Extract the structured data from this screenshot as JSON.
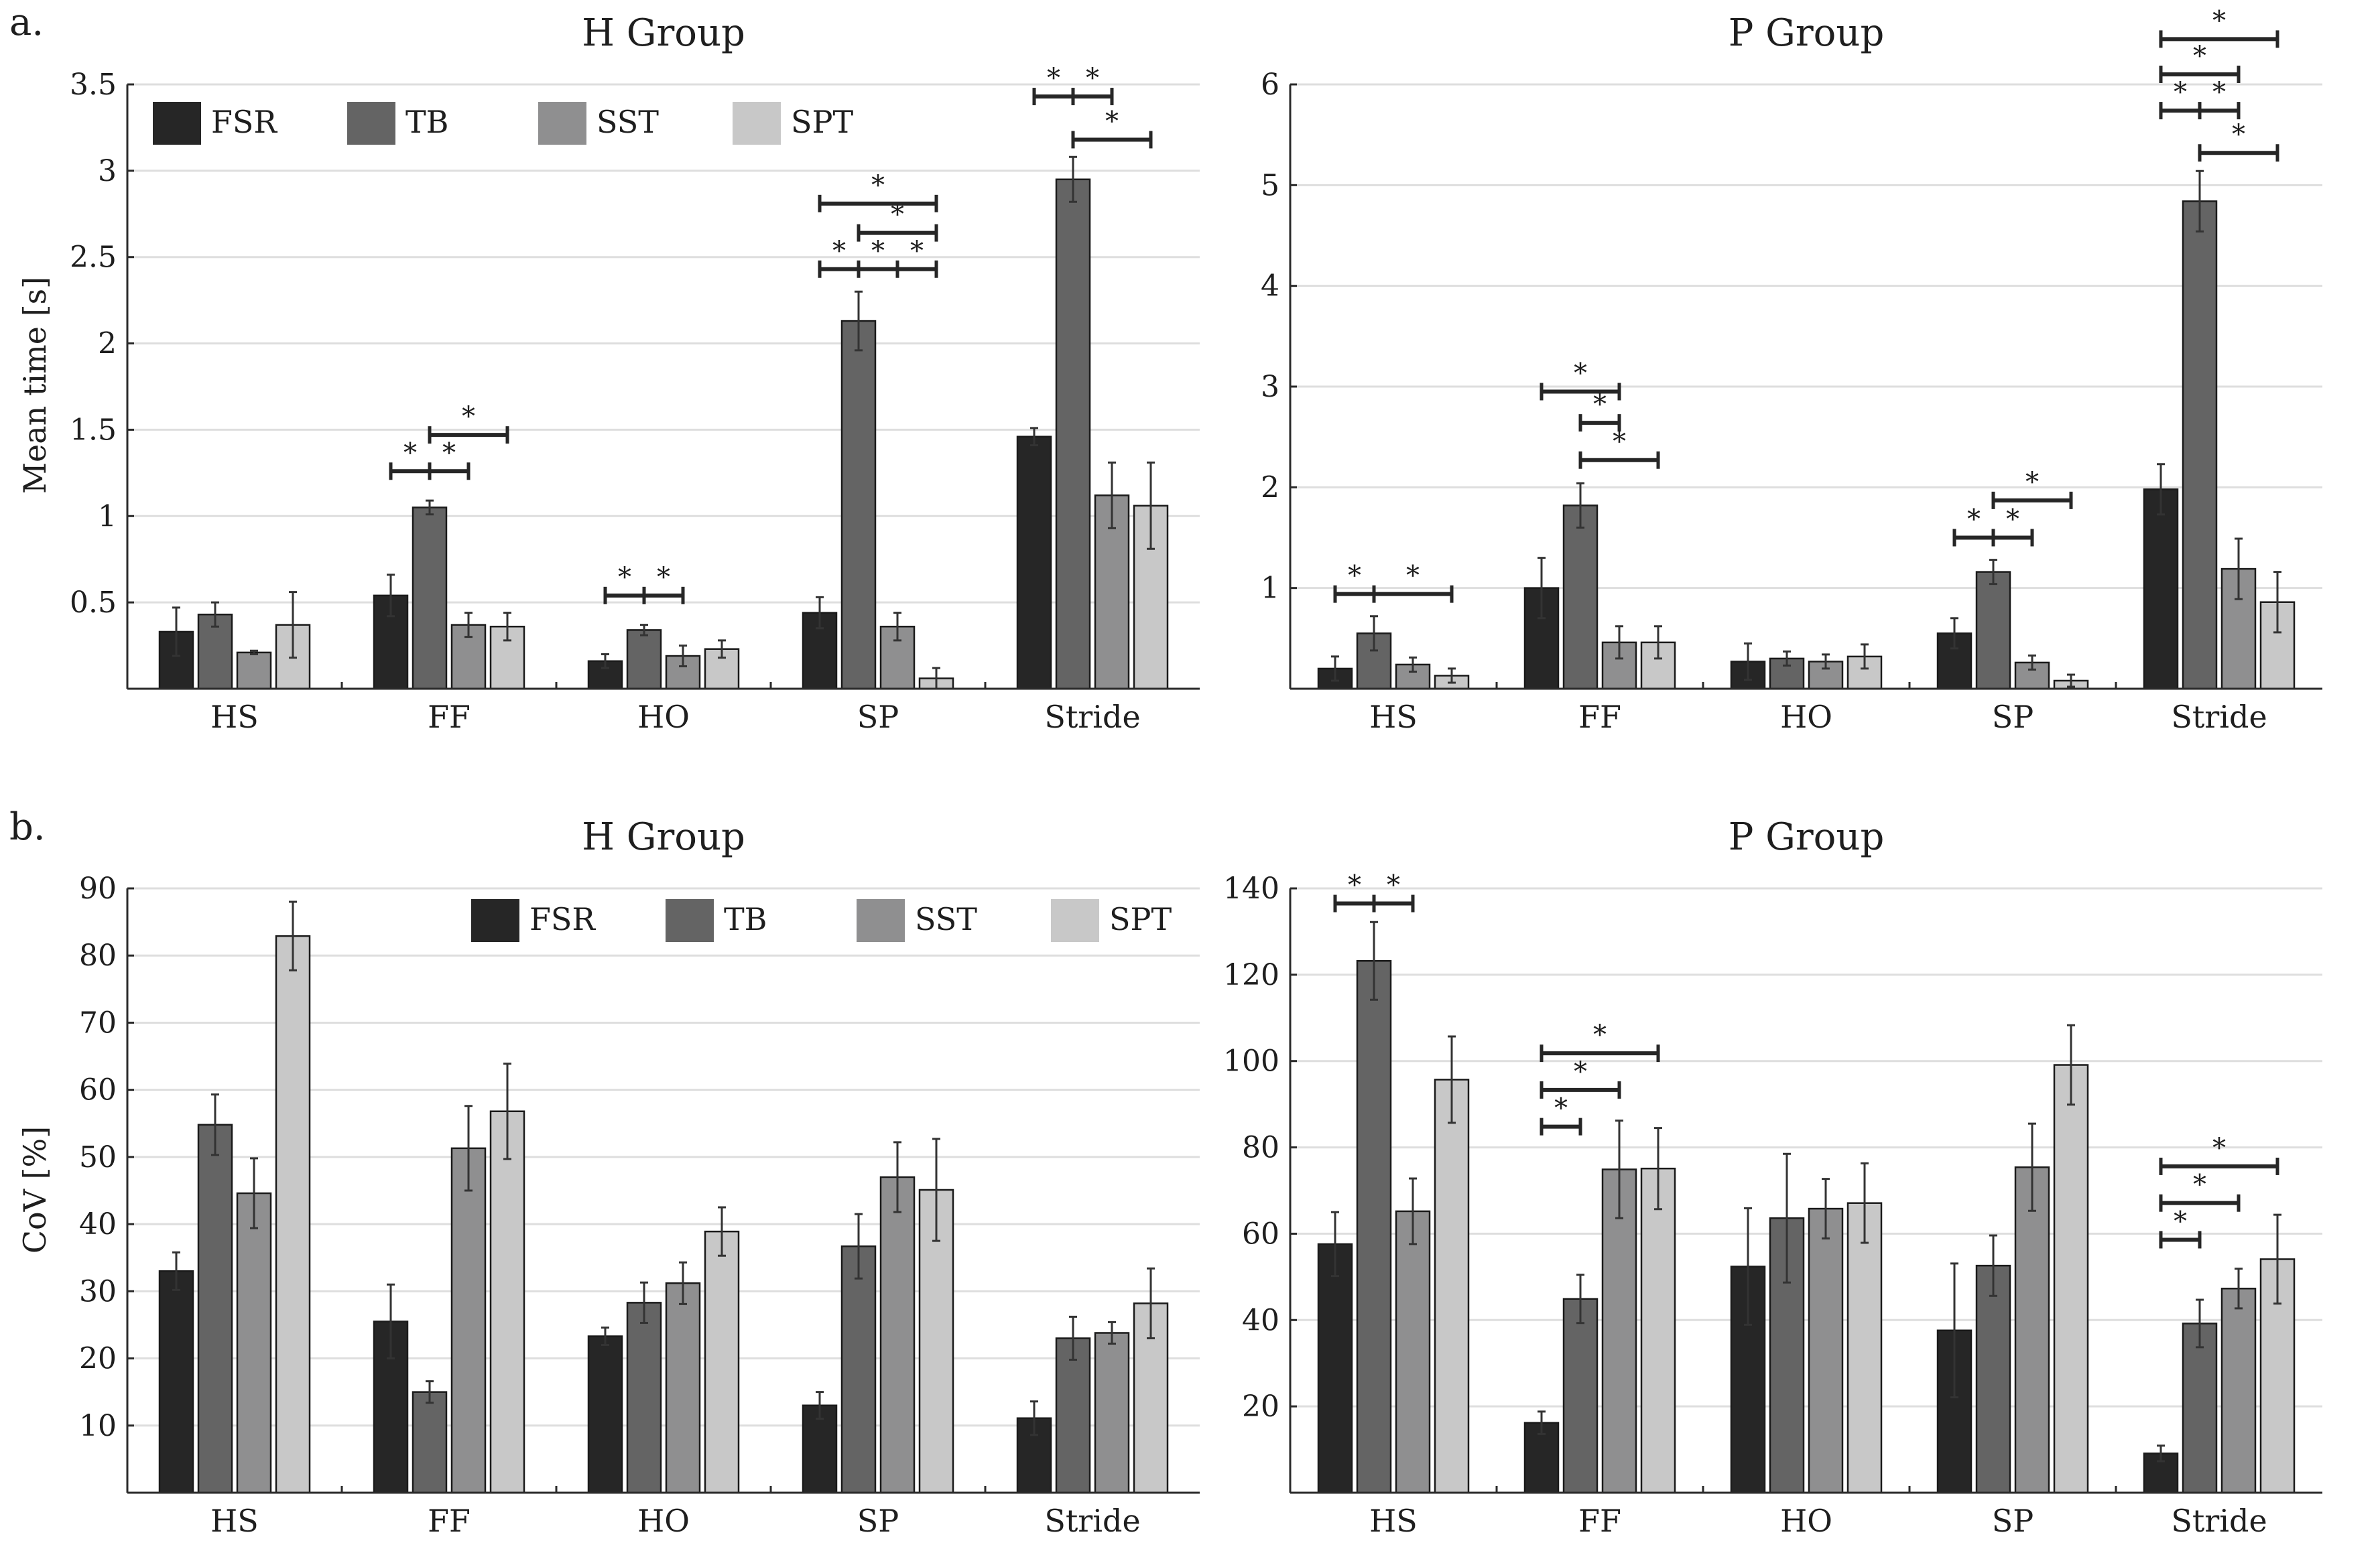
{
  "figure": {
    "section_labels": [
      "a.",
      "b."
    ],
    "ylabel_top": "Mean time [s]",
    "ylabel_bottom": "CoV [%]",
    "legend": [
      "FSR",
      "TB",
      "SST",
      "SPT"
    ],
    "colors": {
      "FSR": "#262626",
      "TB": "#646464",
      "SST": "#8f8f90",
      "SPT": "#c8c8c8",
      "grid": "#dedede",
      "axis": "#2a2a2a",
      "bracket": "#262626"
    },
    "significance_marker": "*"
  },
  "chart_data": [
    {
      "type": "bar",
      "title": "H Group",
      "xlabel": "",
      "ylabel": "Mean time [s]",
      "ylim": [
        0,
        3.5
      ],
      "yticks": [
        0.5,
        1,
        1.5,
        2,
        2.5,
        3,
        3.5
      ],
      "ytick_labels": [
        "0.5",
        "1",
        "1.5",
        "2",
        "2.5",
        "3",
        "3.5"
      ],
      "categories": [
        "HS",
        "FF",
        "HO",
        "SP",
        "Stride"
      ],
      "legend_position": "top",
      "series": [
        {
          "name": "FSR",
          "values": [
            0.33,
            0.54,
            0.16,
            0.44,
            1.46
          ],
          "errors": [
            0.14,
            0.12,
            0.04,
            0.09,
            0.05
          ]
        },
        {
          "name": "TB",
          "values": [
            0.43,
            1.05,
            0.34,
            2.13,
            2.95
          ],
          "errors": [
            0.07,
            0.04,
            0.03,
            0.17,
            0.13
          ]
        },
        {
          "name": "SST",
          "values": [
            0.21,
            0.37,
            0.19,
            0.36,
            1.12
          ],
          "errors": [
            0.01,
            0.07,
            0.06,
            0.08,
            0.19
          ]
        },
        {
          "name": "SPT",
          "values": [
            0.37,
            0.36,
            0.23,
            0.06,
            1.06
          ],
          "errors": [
            0.19,
            0.08,
            0.05,
            0.06,
            0.25
          ]
        }
      ],
      "significance": [
        {
          "category": 1,
          "from": 0,
          "to": 2,
          "ticks": [
            0,
            1,
            2
          ],
          "y": 1.26
        },
        {
          "category": 1,
          "from": 1,
          "to": 3,
          "ticks": [
            1,
            3
          ],
          "y": 1.47
        },
        {
          "category": 2,
          "from": 0,
          "to": 2,
          "ticks": [
            0,
            1,
            2
          ],
          "y": 0.54
        },
        {
          "category": 3,
          "from": 0,
          "to": 3,
          "ticks": [
            0,
            1,
            2,
            3
          ],
          "y": 2.43
        },
        {
          "category": 3,
          "from": 1,
          "to": 3,
          "ticks": [
            1,
            3
          ],
          "y": 2.64
        },
        {
          "category": 3,
          "from": 0,
          "to": 3,
          "ticks": [
            0,
            3
          ],
          "y": 2.81
        },
        {
          "category": 4,
          "from": 0,
          "to": 2,
          "ticks": [
            0,
            1,
            2
          ],
          "y": 3.43
        },
        {
          "category": 4,
          "from": 1,
          "to": 3,
          "ticks": [
            1,
            3
          ],
          "y": 3.18
        }
      ]
    },
    {
      "type": "bar",
      "title": "P Group",
      "xlabel": "",
      "ylabel": "",
      "ylim": [
        0,
        6
      ],
      "yticks": [
        1,
        2,
        3,
        4,
        5,
        6
      ],
      "ytick_labels": [
        "1",
        "2",
        "3",
        "4",
        "5",
        "6"
      ],
      "categories": [
        "HS",
        "FF",
        "HO",
        "SP",
        "Stride"
      ],
      "series": [
        {
          "name": "FSR",
          "values": [
            0.2,
            1.0,
            0.27,
            0.55,
            1.98
          ],
          "errors": [
            0.12,
            0.3,
            0.18,
            0.15,
            0.25
          ]
        },
        {
          "name": "TB",
          "values": [
            0.55,
            1.82,
            0.3,
            1.16,
            4.84
          ],
          "errors": [
            0.17,
            0.22,
            0.07,
            0.12,
            0.3
          ]
        },
        {
          "name": "SST",
          "values": [
            0.24,
            0.46,
            0.27,
            0.26,
            1.19
          ],
          "errors": [
            0.07,
            0.16,
            0.07,
            0.07,
            0.3
          ]
        },
        {
          "name": "SPT",
          "values": [
            0.13,
            0.46,
            0.32,
            0.08,
            0.86
          ],
          "errors": [
            0.07,
            0.16,
            0.12,
            0.06,
            0.3
          ]
        }
      ],
      "significance": [
        {
          "category": 0,
          "from": 0,
          "to": 3,
          "ticks": [
            0,
            1,
            3
          ],
          "y": 0.94
        },
        {
          "category": 1,
          "from": 0,
          "to": 2,
          "ticks": [
            0,
            2
          ],
          "y": 2.95
        },
        {
          "category": 1,
          "from": 1,
          "to": 2,
          "ticks": [
            1,
            2
          ],
          "y": 2.64
        },
        {
          "category": 1,
          "from": 1,
          "to": 3,
          "ticks": [
            1,
            3
          ],
          "y": 2.27
        },
        {
          "category": 3,
          "from": 0,
          "to": 2,
          "ticks": [
            0,
            1,
            2
          ],
          "y": 1.5
        },
        {
          "category": 3,
          "from": 1,
          "to": 3,
          "ticks": [
            1,
            3
          ],
          "y": 1.87
        },
        {
          "category": 4,
          "from": 0,
          "to": 3,
          "ticks": [
            0,
            3
          ],
          "y": 6.45
        },
        {
          "category": 4,
          "from": 0,
          "to": 2,
          "ticks": [
            0,
            2
          ],
          "y": 6.1
        },
        {
          "category": 4,
          "from": 0,
          "to": 2,
          "ticks": [
            0,
            1,
            2
          ],
          "y": 5.74
        },
        {
          "category": 4,
          "from": 1,
          "to": 3,
          "ticks": [
            1,
            3
          ],
          "y": 5.32
        }
      ]
    },
    {
      "type": "bar",
      "title": "H Group",
      "xlabel": "",
      "ylabel": "CoV [%]",
      "ylim": [
        0,
        90
      ],
      "yticks": [
        10,
        20,
        30,
        40,
        50,
        60,
        70,
        80,
        90
      ],
      "ytick_labels": [
        "10",
        "20",
        "30",
        "40",
        "50",
        "60",
        "70",
        "80",
        "90"
      ],
      "categories": [
        "HS",
        "FF",
        "HO",
        "SP",
        "Stride"
      ],
      "legend_position": "top-right",
      "series": [
        {
          "name": "FSR",
          "values": [
            33,
            25.5,
            23.3,
            13,
            11.1
          ],
          "errors": [
            2.8,
            5.5,
            1.3,
            2,
            2.5
          ]
        },
        {
          "name": "TB",
          "values": [
            54.8,
            15,
            28.3,
            36.7,
            23
          ],
          "errors": [
            4.5,
            1.6,
            3,
            4.8,
            3.2
          ]
        },
        {
          "name": "SST",
          "values": [
            44.6,
            51.3,
            31.2,
            47,
            23.8
          ],
          "errors": [
            5.2,
            6.3,
            3.1,
            5.2,
            1.6
          ]
        },
        {
          "name": "SPT",
          "values": [
            82.9,
            56.8,
            38.9,
            45.1,
            28.2
          ],
          "errors": [
            5.1,
            7.1,
            3.6,
            7.6,
            5.2
          ]
        }
      ],
      "significance": []
    },
    {
      "type": "bar",
      "title": "P Group",
      "xlabel": "",
      "ylabel": "",
      "ylim": [
        0,
        140
      ],
      "yticks": [
        20,
        40,
        60,
        80,
        100,
        120,
        140
      ],
      "ytick_labels": [
        "20",
        "40",
        "60",
        "80",
        "100",
        "120",
        "140"
      ],
      "categories": [
        "HS",
        "FF",
        "HO",
        "SP",
        "Stride"
      ],
      "series": [
        {
          "name": "FSR",
          "values": [
            57.6,
            16.2,
            52.4,
            37.6,
            9.1
          ],
          "errors": [
            7.4,
            2.6,
            13.5,
            15.5,
            1.8
          ]
        },
        {
          "name": "TB",
          "values": [
            123.2,
            44.9,
            63.6,
            52.6,
            39.2
          ],
          "errors": [
            9,
            5.6,
            14.9,
            7,
            5.5
          ]
        },
        {
          "name": "SST",
          "values": [
            65.2,
            74.9,
            65.8,
            75.4,
            47.3
          ],
          "errors": [
            7.6,
            11.3,
            6.9,
            10.1,
            4.6
          ]
        },
        {
          "name": "SPT",
          "values": [
            95.7,
            75.1,
            67.1,
            99.1,
            54.1
          ],
          "errors": [
            10,
            9.4,
            9.2,
            9.2,
            10.3
          ]
        }
      ],
      "significance": [
        {
          "category": 0,
          "from": 0,
          "to": 2,
          "ticks": [
            0,
            1,
            2
          ],
          "y": 136.5
        },
        {
          "category": 1,
          "from": 0,
          "to": 3,
          "ticks": [
            0,
            3
          ],
          "y": 101.8
        },
        {
          "category": 1,
          "from": 0,
          "to": 2,
          "ticks": [
            0,
            2
          ],
          "y": 93.3
        },
        {
          "category": 1,
          "from": 0,
          "to": 1,
          "ticks": [
            0,
            1
          ],
          "y": 84.8
        },
        {
          "category": 4,
          "from": 0,
          "to": 3,
          "ticks": [
            0,
            3
          ],
          "y": 75.6
        },
        {
          "category": 4,
          "from": 0,
          "to": 2,
          "ticks": [
            0,
            2
          ],
          "y": 67.1
        },
        {
          "category": 4,
          "from": 0,
          "to": 1,
          "ticks": [
            0,
            1
          ],
          "y": 58.6
        }
      ]
    }
  ]
}
